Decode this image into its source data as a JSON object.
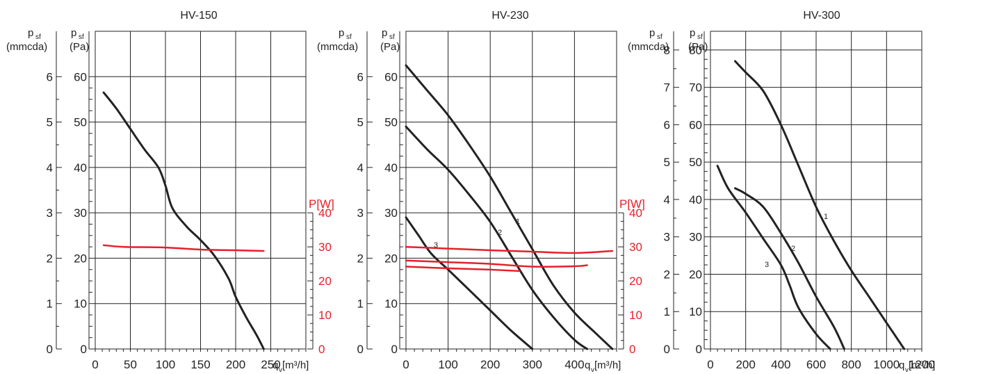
{
  "colors": {
    "curve": "#222222",
    "power": "#e4202a",
    "grid": "#222222",
    "axis": "#222222"
  },
  "chart_data": [
    {
      "type": "line",
      "title": "HV-150",
      "axes": {
        "x": {
          "label": "q",
          "label_sub": "v",
          "unit": "[m³/h]",
          "range": [
            0,
            300
          ],
          "ticks": [
            0,
            50,
            100,
            150,
            200,
            250
          ]
        },
        "y_pa": {
          "label": "p",
          "label_sub": "sf",
          "unit": "(Pa)",
          "range": [
            0,
            60
          ],
          "ticks": [
            0,
            10,
            20,
            30,
            40,
            50,
            60
          ]
        },
        "y_mmcda": {
          "label": "p",
          "label_sub": "sf",
          "unit": "(mmcda)",
          "range": [
            0,
            6
          ],
          "ticks": [
            0,
            1,
            2,
            3,
            4,
            5,
            6
          ]
        },
        "y_power": {
          "label": "P[W]",
          "range": [
            0,
            40
          ],
          "ticks": [
            0,
            10,
            20,
            30,
            40
          ]
        }
      },
      "grid": true,
      "series": [
        {
          "label": "",
          "kind": "pressure",
          "x": [
            12,
            30,
            50,
            70,
            90,
            100,
            110,
            130,
            150,
            170,
            190,
            200,
            215,
            230,
            240
          ],
          "y": [
            56.5,
            53,
            48.5,
            44,
            40,
            36,
            31,
            27,
            24,
            20.5,
            15.5,
            11.5,
            7,
            3,
            0
          ]
        },
        {
          "label": "",
          "kind": "power",
          "x": [
            12,
            40,
            100,
            150,
            200,
            240
          ],
          "y": [
            30.5,
            30,
            29.8,
            29.2,
            29,
            28.8
          ]
        }
      ]
    },
    {
      "type": "line",
      "title": "HV-230",
      "axes": {
        "x": {
          "label": "q",
          "label_sub": "v",
          "unit": "[m³/h]",
          "range": [
            0,
            500
          ],
          "ticks": [
            0,
            100,
            200,
            300,
            400
          ]
        },
        "y_pa": {
          "label": "p",
          "label_sub": "sf",
          "unit": "(Pa)",
          "range": [
            0,
            60
          ],
          "ticks": [
            0,
            10,
            20,
            30,
            40,
            50,
            60
          ]
        },
        "y_mmcda": {
          "label": "p",
          "label_sub": "sf",
          "unit": "(mmcda)",
          "range": [
            0,
            6
          ],
          "ticks": [
            0,
            1,
            2,
            3,
            4,
            5,
            6
          ]
        },
        "y_power": {
          "label": "P[W]",
          "range": [
            0,
            40
          ],
          "ticks": [
            0,
            10,
            20,
            30,
            40
          ]
        }
      },
      "grid": true,
      "series": [
        {
          "label": "1",
          "kind": "pressure",
          "x": [
            0,
            50,
            100,
            150,
            200,
            250,
            300,
            350,
            400,
            450,
            490
          ],
          "y": [
            62.5,
            57,
            51.5,
            45,
            38,
            30,
            22,
            14,
            8,
            3.5,
            0
          ]
        },
        {
          "label": "2",
          "kind": "pressure",
          "x": [
            0,
            50,
            100,
            150,
            200,
            250,
            300,
            350,
            400,
            430
          ],
          "y": [
            49,
            44,
            39.5,
            34,
            28,
            20.5,
            13,
            7,
            2,
            0
          ]
        },
        {
          "label": "3",
          "kind": "pressure",
          "x": [
            0,
            30,
            60,
            100,
            150,
            200,
            250,
            300
          ],
          "y": [
            29,
            25,
            21,
            17.5,
            13,
            8.5,
            4,
            0
          ]
        },
        {
          "label": "",
          "kind": "power",
          "x": [
            0,
            100,
            200,
            300,
            400,
            490
          ],
          "y": [
            30,
            29.5,
            29,
            28.6,
            28.2,
            28.8
          ]
        },
        {
          "label": "",
          "kind": "power",
          "x": [
            0,
            100,
            200,
            300,
            400,
            430
          ],
          "y": [
            26,
            25.5,
            25,
            24.2,
            24.3,
            24.6
          ]
        },
        {
          "label": "",
          "kind": "power",
          "x": [
            0,
            100,
            200,
            270
          ],
          "y": [
            24.2,
            23.7,
            23.3,
            22.9
          ]
        }
      ]
    },
    {
      "type": "line",
      "title": "HV-300",
      "axes": {
        "x": {
          "label": "q",
          "label_sub": "v",
          "unit": "[m³/h]",
          "range": [
            0,
            1200
          ],
          "ticks": [
            0,
            200,
            400,
            600,
            800,
            1000,
            1200
          ]
        },
        "y_pa": {
          "label": "p",
          "label_sub": "sf",
          "unit": "(Pa)",
          "range": [
            0,
            80
          ],
          "ticks": [
            0,
            10,
            20,
            30,
            40,
            50,
            60,
            70,
            80
          ]
        },
        "y_mmcda": {
          "label": "p",
          "label_sub": "sf",
          "unit": "(mmcda)",
          "range": [
            0,
            8
          ],
          "ticks": [
            0,
            1,
            2,
            3,
            4,
            5,
            6,
            7,
            8
          ]
        }
      },
      "grid": true,
      "series": [
        {
          "label": "1",
          "kind": "pressure",
          "x": [
            140,
            200,
            300,
            400,
            500,
            600,
            700,
            800,
            900,
            1000,
            1100
          ],
          "y": [
            77,
            74,
            69,
            60,
            49,
            38,
            29,
            21,
            14,
            7,
            0
          ]
        },
        {
          "label": "2",
          "kind": "pressure",
          "x": [
            140,
            200,
            300,
            400,
            500,
            600,
            700,
            760
          ],
          "y": [
            43,
            41.5,
            38,
            31,
            23,
            14,
            6,
            0
          ]
        },
        {
          "label": "3",
          "kind": "pressure",
          "x": [
            40,
            100,
            200,
            300,
            400,
            450,
            500,
            600,
            680
          ],
          "y": [
            49,
            43,
            36.5,
            29.5,
            22.5,
            17,
            11,
            4,
            0
          ]
        }
      ]
    }
  ]
}
